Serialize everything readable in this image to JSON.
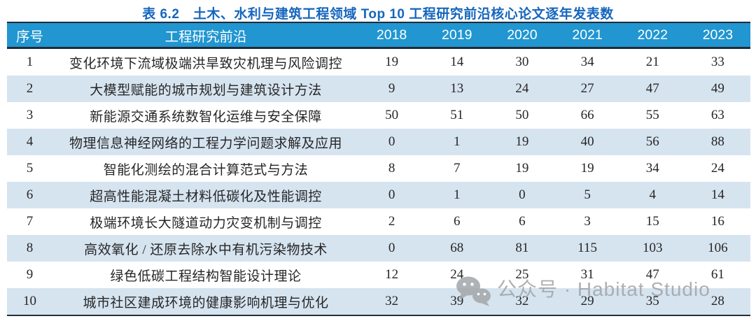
{
  "title": "表 6.2　土木、水利与建筑工程领域 Top 10 工程研究前沿核心论文逐年发表数",
  "table": {
    "headers": [
      "序号",
      "工程研究前沿",
      "2018",
      "2019",
      "2020",
      "2021",
      "2022",
      "2023"
    ],
    "rows": [
      {
        "rank": "1",
        "front": "变化环境下流域极端洪旱致灾机理与风险调控",
        "values": [
          19,
          14,
          30,
          34,
          21,
          33
        ]
      },
      {
        "rank": "2",
        "front": "大模型赋能的城市规划与建筑设计方法",
        "values": [
          9,
          13,
          24,
          27,
          47,
          49
        ]
      },
      {
        "rank": "3",
        "front": "新能源交通系统数智化运维与安全保障",
        "values": [
          50,
          51,
          50,
          66,
          55,
          63
        ]
      },
      {
        "rank": "4",
        "front": "物理信息神经网络的工程力学问题求解及应用",
        "values": [
          0,
          1,
          19,
          40,
          56,
          88
        ]
      },
      {
        "rank": "5",
        "front": "智能化测绘的混合计算范式与方法",
        "values": [
          8,
          7,
          19,
          19,
          34,
          24
        ]
      },
      {
        "rank": "6",
        "front": "超高性能混凝土材料低碳化及性能调控",
        "values": [
          0,
          1,
          0,
          5,
          4,
          14
        ]
      },
      {
        "rank": "7",
        "front": "极端环境长大隧道动力灾变机制与调控",
        "values": [
          2,
          6,
          6,
          3,
          15,
          16
        ]
      },
      {
        "rank": "8",
        "front": "高效氧化 / 还原去除水中有机污染物技术",
        "values": [
          0,
          68,
          81,
          115,
          103,
          106
        ]
      },
      {
        "rank": "9",
        "front": "绿色低碳工程结构智能设计理论",
        "values": [
          12,
          24,
          25,
          31,
          47,
          61
        ]
      },
      {
        "rank": "10",
        "front": "城市社区建成环境的健康影响机理与优化",
        "values": [
          32,
          39,
          32,
          29,
          35,
          28
        ]
      }
    ]
  },
  "watermark": {
    "icon": "wechat-icon",
    "text": "公众号 · Habitat Studio"
  },
  "colors": {
    "header_bg": "#2196d1",
    "alt_row_bg": "#d6e4f0",
    "title_text": "#1566bd",
    "border_dark": "#1e2b38",
    "body_text": "#262626",
    "watermark_gray": "#a2a6aa"
  }
}
